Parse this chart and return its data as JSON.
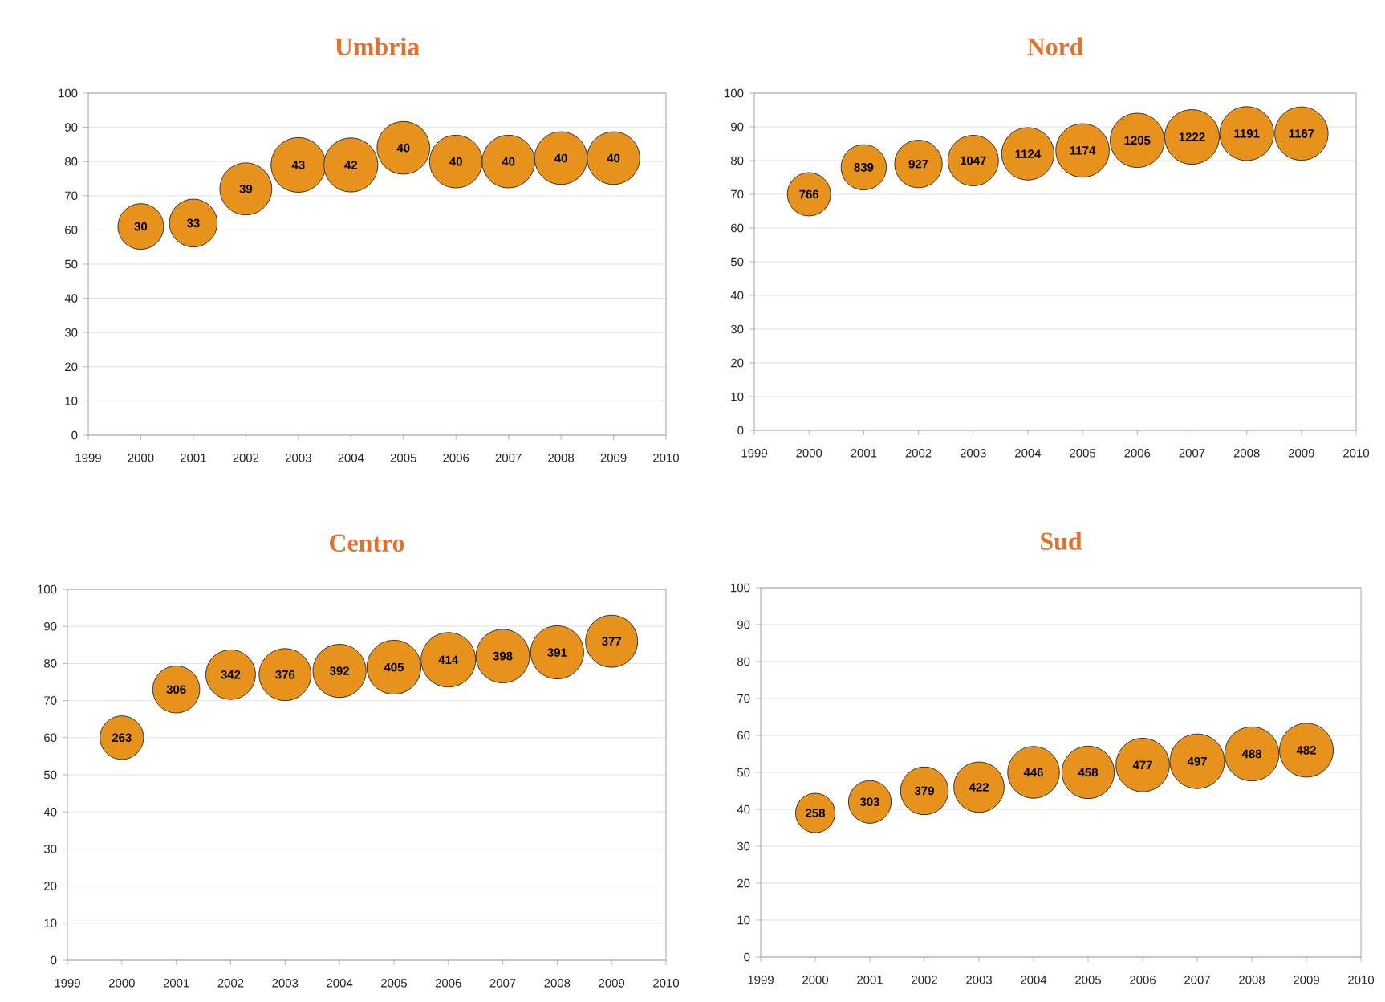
{
  "chart_data": [
    {
      "type": "bubble",
      "title": "Umbria",
      "x": [
        2000,
        2001,
        2002,
        2003,
        2004,
        2005,
        2006,
        2007,
        2008,
        2009
      ],
      "values": [
        61,
        62,
        72,
        79,
        79,
        84,
        80,
        80,
        81,
        81
      ],
      "sizes": [
        30,
        33,
        39,
        43,
        42,
        40,
        40,
        40,
        40,
        40
      ],
      "value_labels": [
        "30",
        "33",
        "39",
        "43",
        "42",
        "40",
        "40",
        "40",
        "40",
        "40"
      ],
      "color": "#e8921e",
      "grid": "y",
      "xlim": [
        1999,
        2010
      ],
      "ylim": [
        0,
        100
      ],
      "xticks": [
        1999,
        2000,
        2001,
        2002,
        2003,
        2004,
        2005,
        2006,
        2007,
        2008,
        2009,
        2010
      ],
      "yticks": [
        0,
        10,
        20,
        30,
        40,
        50,
        60,
        70,
        80,
        90,
        100
      ]
    },
    {
      "type": "bubble",
      "title": "Nord",
      "x": [
        2000,
        2001,
        2002,
        2003,
        2004,
        2005,
        2006,
        2007,
        2008,
        2009
      ],
      "values": [
        70,
        78,
        79,
        80,
        82,
        83,
        86,
        87,
        88,
        88
      ],
      "sizes": [
        766,
        839,
        927,
        1047,
        1124,
        1174,
        1205,
        1222,
        1191,
        1167
      ],
      "value_labels": [
        "766",
        "839",
        "927",
        "1047",
        "1124",
        "1174",
        "1205",
        "1222",
        "1191",
        "1167"
      ],
      "color": "#e8921e",
      "grid": "y",
      "xlim": [
        1999,
        2010
      ],
      "ylim": [
        0,
        100
      ],
      "xticks": [
        1999,
        2000,
        2001,
        2002,
        2003,
        2004,
        2005,
        2006,
        2007,
        2008,
        2009,
        2010
      ],
      "yticks": [
        0,
        10,
        20,
        30,
        40,
        50,
        60,
        70,
        80,
        90,
        100
      ]
    },
    {
      "type": "bubble",
      "title": "Centro",
      "x": [
        2000,
        2001,
        2002,
        2003,
        2004,
        2005,
        2006,
        2007,
        2008,
        2009
      ],
      "values": [
        60,
        73,
        77,
        77,
        78,
        79,
        81,
        82,
        83,
        86
      ],
      "sizes": [
        263,
        306,
        342,
        376,
        392,
        405,
        414,
        398,
        391,
        377
      ],
      "value_labels": [
        "263",
        "306",
        "342",
        "376",
        "392",
        "405",
        "414",
        "398",
        "391",
        "377"
      ],
      "color": "#e8921e",
      "grid": "y",
      "xlim": [
        1999,
        2010
      ],
      "ylim": [
        0,
        100
      ],
      "xticks": [
        1999,
        2000,
        2001,
        2002,
        2003,
        2004,
        2005,
        2006,
        2007,
        2008,
        2009,
        2010
      ],
      "yticks": [
        0,
        10,
        20,
        30,
        40,
        50,
        60,
        70,
        80,
        90,
        100
      ]
    },
    {
      "type": "bubble",
      "title": "Sud",
      "x": [
        2000,
        2001,
        2002,
        2003,
        2004,
        2005,
        2006,
        2007,
        2008,
        2009
      ],
      "values": [
        39,
        42,
        45,
        46,
        50,
        50,
        52,
        53,
        55,
        56
      ],
      "sizes": [
        258,
        303,
        379,
        422,
        446,
        458,
        477,
        497,
        488,
        482
      ],
      "value_labels": [
        "258",
        "303",
        "379",
        "422",
        "446",
        "458",
        "477",
        "497",
        "488",
        "482"
      ],
      "color": "#e8921e",
      "grid": "y",
      "xlim": [
        1999,
        2010
      ],
      "ylim": [
        0,
        100
      ],
      "xticks": [
        1999,
        2000,
        2001,
        2002,
        2003,
        2004,
        2005,
        2006,
        2007,
        2008,
        2009,
        2010
      ],
      "yticks": [
        0,
        10,
        20,
        30,
        40,
        50,
        60,
        70,
        80,
        90,
        100
      ]
    }
  ]
}
